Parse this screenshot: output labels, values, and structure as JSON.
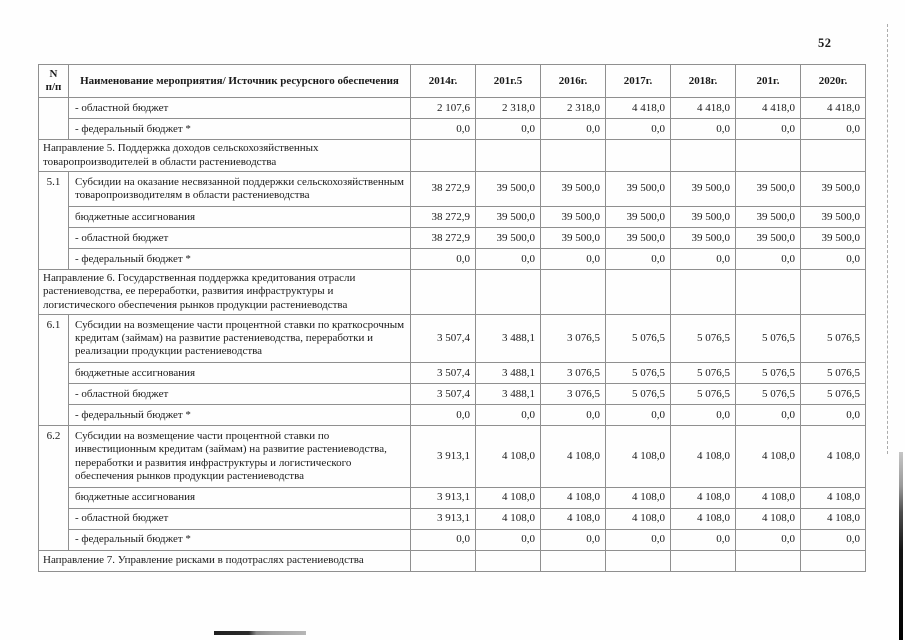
{
  "page": {
    "number": "52"
  },
  "table": {
    "headers": [
      "N\nп/п",
      "Наименование мероприятия/ Источник ресурсного обеспечения",
      "2014г.",
      "201г.5",
      "2016г.",
      "2017г.",
      "2018г.",
      "201г.",
      "2020г."
    ],
    "rows": [
      {
        "type": "sub",
        "num": "",
        "num_rowspan": 2,
        "label": "- областной бюджет",
        "values": [
          "2 107,6",
          "2 318,0",
          "2 318,0",
          "4 418,0",
          "4 418,0",
          "4 418,0",
          "4 418,0"
        ]
      },
      {
        "type": "sub",
        "label": "- федеральный бюджет *",
        "values": [
          "0,0",
          "0,0",
          "0,0",
          "0,0",
          "0,0",
          "0,0",
          "0,0"
        ]
      },
      {
        "type": "section",
        "label": "Направление 5. Поддержка доходов сельскохозяйственных товаропроизводителей в области растениеводства",
        "values": [
          "",
          "",
          "",
          "",
          "",
          "",
          ""
        ]
      },
      {
        "type": "item",
        "num": "5.1",
        "num_rowspan": 4,
        "label": "Субсидии на оказание несвязанной поддержки сельскохозяйственным товаропроизводителям в области растениеводства",
        "values": [
          "38 272,9",
          "39 500,0",
          "39 500,0",
          "39 500,0",
          "39 500,0",
          "39 500,0",
          "39 500,0"
        ]
      },
      {
        "type": "sub",
        "label": "бюджетные ассигнования",
        "values": [
          "38 272,9",
          "39 500,0",
          "39 500,0",
          "39 500,0",
          "39 500,0",
          "39 500,0",
          "39 500,0"
        ]
      },
      {
        "type": "sub",
        "label": "- областной бюджет",
        "values": [
          "38 272,9",
          "39 500,0",
          "39 500,0",
          "39 500,0",
          "39 500,0",
          "39 500,0",
          "39 500,0"
        ]
      },
      {
        "type": "sub",
        "label": "- федеральный бюджет *",
        "values": [
          "0,0",
          "0,0",
          "0,0",
          "0,0",
          "0,0",
          "0,0",
          "0,0"
        ]
      },
      {
        "type": "section",
        "label": "Направление 6. Государственная поддержка кредитования отрасли растениеводства, ее переработки, развития инфраструктуры и логистического обеспечения рынков продукции растениеводства",
        "values": [
          "",
          "",
          "",
          "",
          "",
          "",
          ""
        ]
      },
      {
        "type": "item",
        "num": "6.1",
        "num_rowspan": 4,
        "label": "Субсидии на возмещение части процентной ставки по краткосрочным кредитам (займам) на развитие растениеводства, переработки и реализации продукции растениеводства",
        "values": [
          "3 507,4",
          "3 488,1",
          "3 076,5",
          "5 076,5",
          "5 076,5",
          "5 076,5",
          "5 076,5"
        ]
      },
      {
        "type": "sub",
        "label": "бюджетные ассигнования",
        "values": [
          "3 507,4",
          "3 488,1",
          "3 076,5",
          "5 076,5",
          "5 076,5",
          "5 076,5",
          "5 076,5"
        ]
      },
      {
        "type": "sub",
        "label": "- областной бюджет",
        "values": [
          "3 507,4",
          "3 488,1",
          "3 076,5",
          "5 076,5",
          "5 076,5",
          "5 076,5",
          "5 076,5"
        ]
      },
      {
        "type": "sub",
        "label": "- федеральный бюджет *",
        "values": [
          "0,0",
          "0,0",
          "0,0",
          "0,0",
          "0,0",
          "0,0",
          "0,0"
        ]
      },
      {
        "type": "item",
        "num": "6.2",
        "num_rowspan": 4,
        "label": "Субсидии на возмещение части процентной ставки по инвестиционным кредитам (займам) на развитие растениеводства, переработки и развития инфраструктуры и логистического обеспечения рынков продукции растениеводства",
        "values": [
          "3 913,1",
          "4 108,0",
          "4 108,0",
          "4 108,0",
          "4 108,0",
          "4 108,0",
          "4 108,0"
        ]
      },
      {
        "type": "sub",
        "label": "бюджетные ассигнования",
        "values": [
          "3 913,1",
          "4 108,0",
          "4 108,0",
          "4 108,0",
          "4 108,0",
          "4 108,0",
          "4 108,0"
        ]
      },
      {
        "type": "sub",
        "label": "- областной бюджет",
        "values": [
          "3 913,1",
          "4 108,0",
          "4 108,0",
          "4 108,0",
          "4 108,0",
          "4 108,0",
          "4 108,0"
        ]
      },
      {
        "type": "sub",
        "label": "- федеральный бюджет *",
        "values": [
          "0,0",
          "0,0",
          "0,0",
          "0,0",
          "0,0",
          "0,0",
          "0,0"
        ]
      },
      {
        "type": "section",
        "label": "Направление 7. Управление рисками в подотраслях растениеводства",
        "values": [
          "",
          "",
          "",
          "",
          "",
          "",
          ""
        ]
      }
    ]
  }
}
